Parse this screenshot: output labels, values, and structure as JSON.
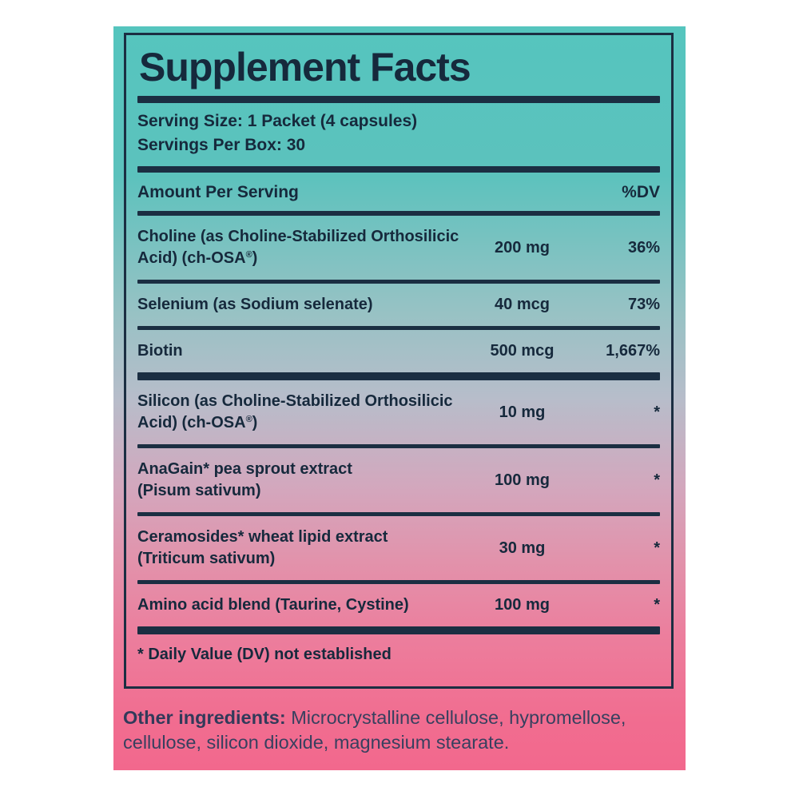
{
  "label": {
    "title": "Supplement Facts",
    "colors": {
      "teal_top": "#55C5BE",
      "mid_gray_blue": "#B7BDCA",
      "pink_bottom": "#F2688D",
      "text_navy": "#16293C",
      "rule_navy": "#1B2E42",
      "page_background": "#FFFFFF"
    },
    "serving": {
      "serving_size": "Serving Size: 1 Packet (4 capsules)",
      "servings_per_box": "Servings Per Box: 30"
    },
    "table": {
      "header": {
        "amount_label": "Amount Per Serving",
        "dv_label": "%DV"
      },
      "rows": [
        {
          "name_lines": [
            "Choline (as Choline-Stabilized Orthosilicic",
            "Acid) (ch-OSA®)"
          ],
          "amount": "200 mg",
          "dv": "36%",
          "divider_after": "thin"
        },
        {
          "name_lines": [
            "Selenium (as Sodium selenate)"
          ],
          "amount": "40 mcg",
          "dv": "73%",
          "divider_after": "thin"
        },
        {
          "name_lines": [
            "Biotin"
          ],
          "amount": "500 mcg",
          "dv": "1,667%",
          "divider_after": "thick"
        },
        {
          "name_lines": [
            "Silicon (as Choline-Stabilized Orthosilicic",
            "Acid) (ch-OSA®)"
          ],
          "amount": "10 mg",
          "dv": "*",
          "divider_after": "thin"
        },
        {
          "name_lines": [
            "AnaGain* pea sprout extract",
            "(Pisum sativum)"
          ],
          "amount": "100 mg",
          "dv": "*",
          "divider_after": "thin"
        },
        {
          "name_lines": [
            "Ceramosides* wheat lipid extract",
            "(Triticum sativum)"
          ],
          "amount": "30 mg",
          "dv": "*",
          "divider_after": "thin"
        },
        {
          "name_lines": [
            "Amino acid blend (Taurine, Cystine)"
          ],
          "amount": "100 mg",
          "dv": "*",
          "divider_after": "thick"
        }
      ]
    },
    "footnote": "* Daily Value (DV) not established",
    "other_ingredients": {
      "label": "Other ingredients:",
      "text": " Microcrystalline cellulose, hypromellose, cellulose, silicon dioxide, magnesium stearate."
    }
  }
}
